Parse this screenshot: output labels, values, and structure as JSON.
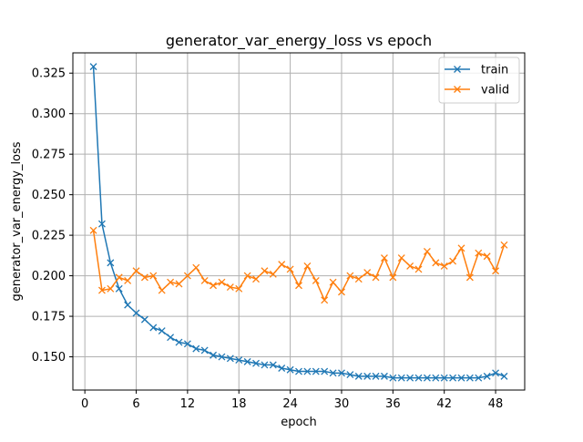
{
  "chart_data": {
    "type": "line",
    "title": "generator_var_energy_loss vs epoch",
    "xlabel": "epoch",
    "ylabel": "generator_var_energy_loss",
    "xlim": [
      -1.4,
      51.4
    ],
    "ylim": [
      0.1295,
      0.3375
    ],
    "xticks": [
      0,
      6,
      12,
      18,
      24,
      30,
      36,
      42,
      48
    ],
    "xtick_labels": [
      "0",
      "6",
      "12",
      "18",
      "24",
      "30",
      "36",
      "42",
      "48"
    ],
    "yticks": [
      0.15,
      0.175,
      0.2,
      0.225,
      0.25,
      0.275,
      0.3,
      0.325
    ],
    "ytick_labels": [
      "0.150",
      "0.175",
      "0.200",
      "0.225",
      "0.250",
      "0.275",
      "0.300",
      "0.325"
    ],
    "grid": true,
    "legend_position": "top-right",
    "x": [
      1,
      2,
      3,
      4,
      5,
      6,
      7,
      8,
      9,
      10,
      11,
      12,
      13,
      14,
      15,
      16,
      17,
      18,
      19,
      20,
      21,
      22,
      23,
      24,
      25,
      26,
      27,
      28,
      29,
      30,
      31,
      32,
      33,
      34,
      35,
      36,
      37,
      38,
      39,
      40,
      41,
      42,
      43,
      44,
      45,
      46,
      47,
      48,
      49
    ],
    "series": [
      {
        "name": "train",
        "color": "#1f77b4",
        "marker": "x",
        "values": [
          0.329,
          0.232,
          0.208,
          0.192,
          0.182,
          0.177,
          0.173,
          0.168,
          0.166,
          0.162,
          0.159,
          0.158,
          0.155,
          0.154,
          0.151,
          0.15,
          0.149,
          0.148,
          0.147,
          0.146,
          0.145,
          0.145,
          0.143,
          0.142,
          0.141,
          0.141,
          0.141,
          0.141,
          0.14,
          0.14,
          0.139,
          0.138,
          0.138,
          0.138,
          0.138,
          0.137,
          0.137,
          0.137,
          0.137,
          0.137,
          0.137,
          0.137,
          0.137,
          0.137,
          0.137,
          0.137,
          0.138,
          0.14,
          0.138
        ]
      },
      {
        "name": "valid",
        "color": "#ff7f0e",
        "marker": "x",
        "values": [
          0.228,
          0.191,
          0.192,
          0.199,
          0.197,
          0.203,
          0.199,
          0.2,
          0.191,
          0.196,
          0.195,
          0.2,
          0.205,
          0.197,
          0.194,
          0.196,
          0.193,
          0.192,
          0.2,
          0.198,
          0.203,
          0.201,
          0.207,
          0.204,
          0.194,
          0.206,
          0.197,
          0.185,
          0.196,
          0.19,
          0.2,
          0.198,
          0.202,
          0.199,
          0.211,
          0.199,
          0.211,
          0.206,
          0.204,
          0.215,
          0.208,
          0.206,
          0.209,
          0.217,
          0.199,
          0.214,
          0.212,
          0.203,
          0.219
        ]
      }
    ]
  }
}
